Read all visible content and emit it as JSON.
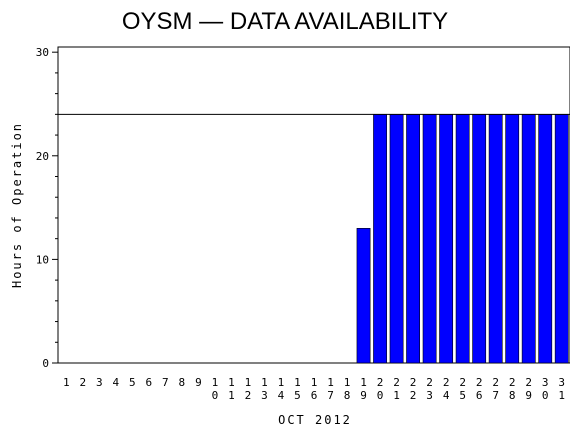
{
  "chart_data": {
    "type": "bar",
    "title": "OYSM — DATA AVAILABILITY",
    "xlabel": "OCT 2012",
    "ylabel": "Hours of Operation",
    "categories": [
      "1",
      "2",
      "3",
      "4",
      "5",
      "6",
      "7",
      "8",
      "9",
      "10",
      "11",
      "12",
      "13",
      "14",
      "15",
      "16",
      "17",
      "18",
      "19",
      "20",
      "21",
      "22",
      "23",
      "24",
      "25",
      "26",
      "27",
      "28",
      "29",
      "30",
      "31"
    ],
    "values": [
      0,
      0,
      0,
      0,
      0,
      0,
      0,
      0,
      0,
      0,
      0,
      0,
      0,
      0,
      0,
      0,
      0,
      0,
      13,
      24,
      24,
      24,
      24,
      24,
      24,
      24,
      24,
      24,
      24,
      24,
      24
    ],
    "ylim": [
      0,
      30.5
    ],
    "yticks": [
      0,
      10,
      20,
      30
    ],
    "reference_line": 24,
    "bar_color": "#0000ff",
    "grid": false
  }
}
